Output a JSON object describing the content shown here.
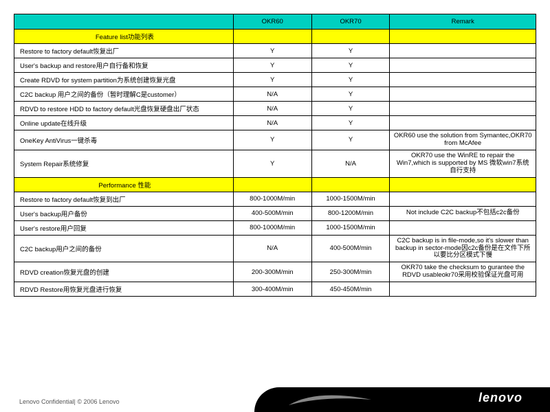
{
  "columns": {
    "blank": "",
    "c1": "OKR60",
    "c2": "OKR70",
    "c3": "Remark"
  },
  "section1": "Feature list功能列表",
  "section2": "Performance 性能",
  "rows1": [
    {
      "f": "Restore to factory default恢复出厂",
      "a": "Y",
      "b": "Y",
      "r": ""
    },
    {
      "f": "User's backup and restore用户自行备和恢复",
      "a": "Y",
      "b": "Y",
      "r": ""
    },
    {
      "f": "Create RDVD for system partition为系统创建恢复光盘",
      "a": "Y",
      "b": "Y",
      "r": ""
    },
    {
      "f": "C2C backup 用户之间的备份（暂时理解C是customer）",
      "a": "N/A",
      "b": "Y",
      "r": ""
    },
    {
      "f": "RDVD to restore HDD to factory default光盘恢复硬盘出厂状态",
      "a": "N/A",
      "b": "Y",
      "r": ""
    },
    {
      "f": "Online update在线升级",
      "a": "N/A",
      "b": "Y",
      "r": ""
    },
    {
      "f": "OneKey AntiVirus一键杀毒",
      "a": "Y",
      "b": "Y",
      "r": "OKR60 use the solution from Symantec,OKR70 from McAfee"
    },
    {
      "f": "System Repair系统修复",
      "a": "Y",
      "b": "N/A",
      "r": "OKR70 use the WinRE to repair the Win7,which is supported by MS 微软win7系统自行支持"
    }
  ],
  "rows2": [
    {
      "f": "Restore to factory default恢复到出厂",
      "a": "800-1000M/min",
      "b": "1000-1500M/min",
      "r": ""
    },
    {
      "f": "User's backup用户备份",
      "a": "400-500M/min",
      "b": "800-1200M/min",
      "r": "Not include C2C backup不包括c2c备份"
    },
    {
      "f": "User's restore用户回复",
      "a": "800-1000M/min",
      "b": "1000-1500M/min",
      "r": ""
    },
    {
      "f": "C2C backup用户之间的备份",
      "a": "N/A",
      "b": "400-500M/min",
      "r": "C2C backup is in file-mode,so it's slower than backup in sector-mode因c2c备份是在文件下所以要比分区模式下慢"
    },
    {
      "f": "RDVD creation恢复光盘的创建",
      "a": "200-300M/min",
      "b": "250-300M/min",
      "r": "OKR70 take the checksum to gurantee the RDVD usableokr70采用校验保证光盘可用"
    },
    {
      "f": "RDVD Restore用恢复光盘进行恢复",
      "a": "300-400M/min",
      "b": "450-450M/min",
      "r": ""
    }
  ],
  "footer": {
    "conf": "Lenovo Confidential| © 2006 Lenovo",
    "logo": "lenovo"
  },
  "colors": {
    "header_bg": "#00d0c0",
    "section_bg": "#ffff00",
    "border": "#000000",
    "footer_bar": "#000000"
  }
}
